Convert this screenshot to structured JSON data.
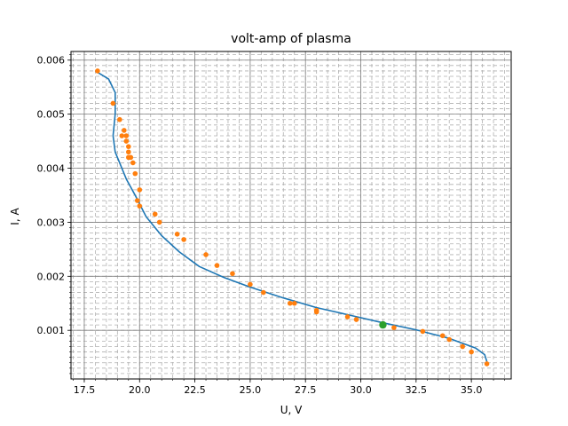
{
  "chart_data": {
    "type": "scatter",
    "title": "volt-amp of plasma",
    "xlabel": "U, V",
    "ylabel": "I, A",
    "xlim": [
      16.9,
      36.8
    ],
    "ylim": [
      0.0001,
      0.00616
    ],
    "grid": true,
    "grid_minor": true,
    "xticks": [
      17.5,
      20.0,
      22.5,
      25.0,
      27.5,
      30.0,
      32.5,
      35.0
    ],
    "xtick_labels": [
      "17.5",
      "20.0",
      "22.5",
      "25.0",
      "27.5",
      "30.0",
      "32.5",
      "35.0"
    ],
    "yticks": [
      0.001,
      0.002,
      0.003,
      0.004,
      0.005,
      0.006
    ],
    "ytick_labels": [
      "0.001",
      "0.002",
      "0.003",
      "0.004",
      "0.005",
      "0.006"
    ],
    "colors": {
      "fit": "#1f77b4",
      "points": "#ff7f0e",
      "highlight": "#2ca02c"
    },
    "series": [
      {
        "kind": "line",
        "x": [
          18.0,
          18.6,
          18.9,
          18.9,
          18.8,
          18.9,
          19.1,
          19.4,
          19.8,
          20.3,
          21.0,
          21.8,
          22.7,
          23.8,
          25.0,
          26.5,
          28.0,
          29.5,
          31.0,
          32.5,
          34.0,
          35.2,
          35.6,
          35.7
        ],
        "y": [
          0.0058,
          0.00565,
          0.0054,
          0.005,
          0.0046,
          0.0043,
          0.0041,
          0.0038,
          0.0035,
          0.0031,
          0.00275,
          0.00245,
          0.00218,
          0.00198,
          0.0018,
          0.0016,
          0.00142,
          0.00128,
          0.00114,
          0.00101,
          0.00085,
          0.00067,
          0.00055,
          0.00042
        ]
      },
      {
        "kind": "scatter",
        "x": [
          18.1,
          18.8,
          19.1,
          19.3,
          19.4,
          19.2,
          19.4,
          19.5,
          19.5,
          19.5,
          19.6,
          19.7,
          19.8,
          20.0,
          19.9,
          20.0,
          20.7,
          20.9,
          21.7,
          22.0,
          23.0,
          23.5,
          24.2,
          25.0,
          25.6,
          26.8,
          27.0,
          28.0,
          28.0,
          29.4,
          29.8,
          31.0,
          31.5,
          32.8,
          33.7,
          34.0,
          34.6,
          35.0,
          35.7
        ],
        "y": [
          0.0058,
          0.0052,
          0.0049,
          0.0047,
          0.0046,
          0.0046,
          0.0045,
          0.0044,
          0.0043,
          0.0042,
          0.0042,
          0.0041,
          0.0039,
          0.0036,
          0.0034,
          0.0033,
          0.00315,
          0.003,
          0.00278,
          0.00268,
          0.0024,
          0.0022,
          0.00205,
          0.00185,
          0.0017,
          0.0015,
          0.0015,
          0.00137,
          0.00134,
          0.00125,
          0.0012,
          0.00112,
          0.00105,
          0.00098,
          0.0009,
          0.00083,
          0.0007,
          0.0006,
          0.00038
        ]
      },
      {
        "kind": "highlight",
        "x": [
          31.0
        ],
        "y": [
          0.0011
        ]
      }
    ]
  }
}
